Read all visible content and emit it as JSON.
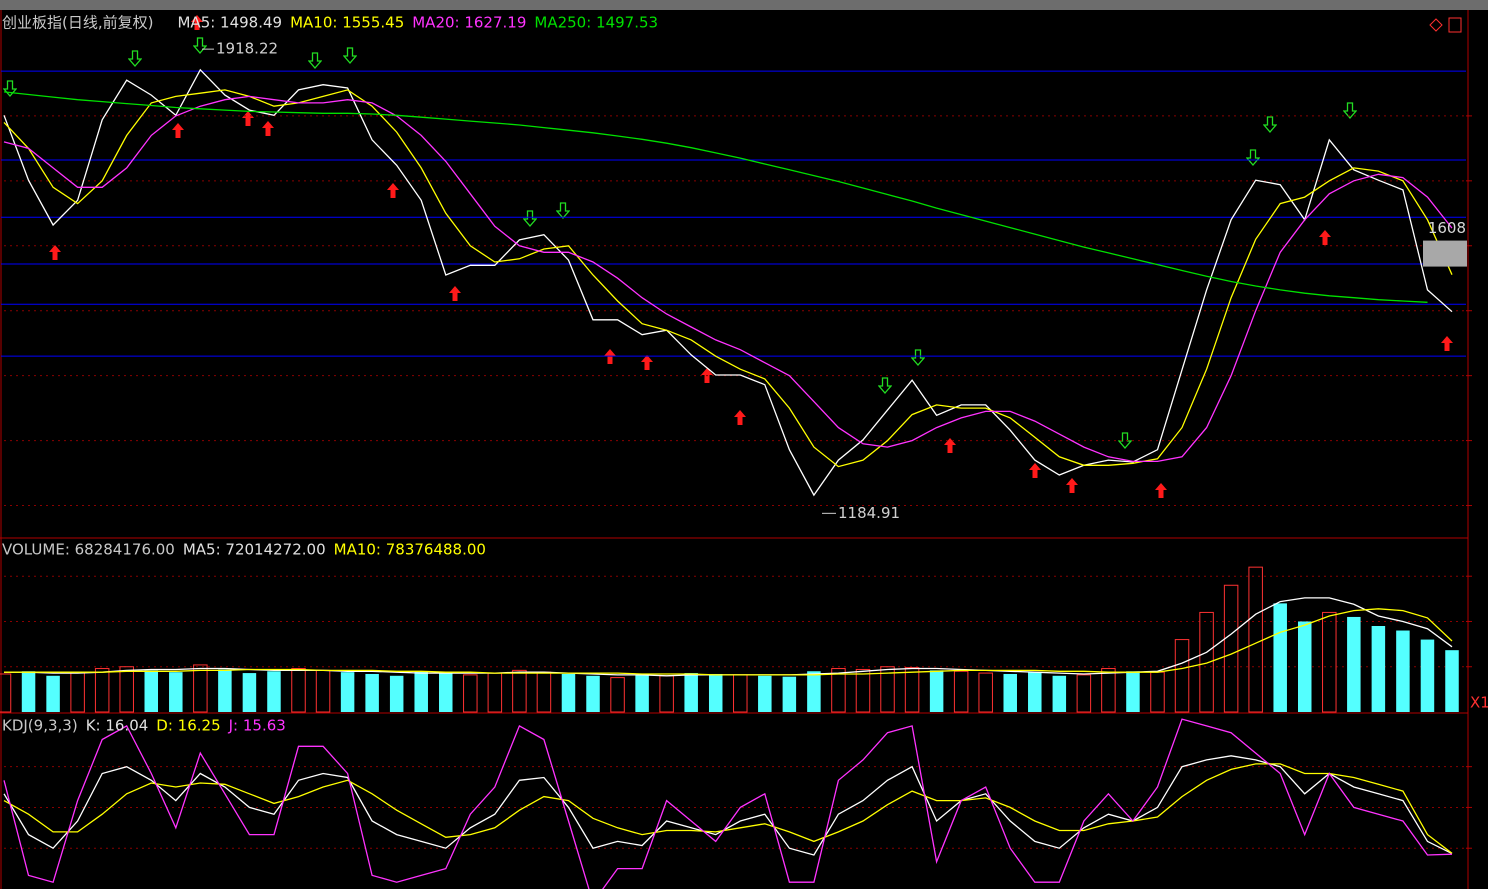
{
  "chart_data": [
    {
      "type": "line",
      "title": "创业板指(日线,前复权)",
      "series": [
        {
          "name": "MA5: 1498.49",
          "color": "#ffffff",
          "values": [
            1801,
            1701,
            1632,
            1670,
            1794,
            1855,
            1832,
            1801,
            1871,
            1832,
            1809,
            1801,
            1840,
            1848,
            1843,
            1763,
            1724,
            1670,
            1555,
            1570,
            1570,
            1609,
            1617,
            1578,
            1486,
            1486,
            1463,
            1470,
            1432,
            1401,
            1401,
            1386,
            1286,
            1216,
            1270,
            1301,
            1347,
            1393,
            1339,
            1355,
            1355,
            1316,
            1270,
            1247,
            1262,
            1270,
            1267,
            1286,
            1409,
            1532,
            1640,
            1701,
            1694,
            1640,
            1763,
            1717,
            1701,
            1686,
            1532,
            1498.49
          ]
        },
        {
          "name": "MA10: 1555.45",
          "color": "#ffff00",
          "values": [
            1790,
            1750,
            1690,
            1665,
            1700,
            1770,
            1820,
            1830,
            1835,
            1840,
            1830,
            1815,
            1820,
            1830,
            1840,
            1815,
            1775,
            1720,
            1650,
            1600,
            1575,
            1580,
            1595,
            1600,
            1555,
            1515,
            1480,
            1470,
            1455,
            1430,
            1410,
            1395,
            1350,
            1290,
            1260,
            1270,
            1300,
            1340,
            1355,
            1350,
            1350,
            1335,
            1305,
            1275,
            1262,
            1262,
            1265,
            1272,
            1320,
            1410,
            1520,
            1610,
            1665,
            1675,
            1700,
            1720,
            1715,
            1700,
            1640,
            1555.45
          ]
        },
        {
          "name": "MA20: 1627.19",
          "color": "#ff33ff",
          "values": [
            1760,
            1750,
            1720,
            1690,
            1690,
            1720,
            1770,
            1800,
            1815,
            1825,
            1830,
            1825,
            1820,
            1820,
            1825,
            1820,
            1800,
            1770,
            1730,
            1680,
            1630,
            1600,
            1590,
            1590,
            1575,
            1550,
            1520,
            1495,
            1475,
            1455,
            1440,
            1420,
            1400,
            1360,
            1320,
            1295,
            1290,
            1300,
            1320,
            1335,
            1345,
            1345,
            1330,
            1310,
            1290,
            1275,
            1268,
            1268,
            1275,
            1320,
            1400,
            1500,
            1590,
            1640,
            1680,
            1700,
            1710,
            1705,
            1675,
            1627.19
          ]
        },
        {
          "name": "MA250: 1497.53",
          "color": "#00e000",
          "values": [
            1837,
            1833,
            1829,
            1825,
            1822,
            1819,
            1816,
            1813,
            1811,
            1809,
            1807,
            1806,
            1805,
            1804,
            1804,
            1803,
            1801,
            1798,
            1795,
            1792,
            1789,
            1786,
            1782,
            1778,
            1774,
            1769,
            1764,
            1758,
            1751,
            1743,
            1735,
            1726,
            1717,
            1708,
            1699,
            1689,
            1679,
            1669,
            1658,
            1648,
            1638,
            1628,
            1618,
            1608,
            1598,
            1589,
            1580,
            1571,
            1562,
            1553,
            1545,
            1538,
            1532,
            1527,
            1523,
            1520,
            1517,
            1515,
            1513,
            null
          ]
        }
      ],
      "ylim": [
        1150,
        1960
      ],
      "yticks": [
        1200,
        1300,
        1400,
        1500,
        1600,
        1700,
        1800
      ],
      "grid": true,
      "hlines": [
        1869,
        1732,
        1644,
        1572,
        1510,
        1430
      ],
      "hline_color": "#0000ff",
      "high": 1918.22,
      "low": 1184.91,
      "cursor_price": 1608
    },
    {
      "type": "bar",
      "title": "VOLUME: 68284176.00",
      "values": [
        42000000,
        45000000,
        40000000,
        44000000,
        48000000,
        50000000,
        46000000,
        44000000,
        52000000,
        47000000,
        43000000,
        45000000,
        48000000,
        46000000,
        44000000,
        42000000,
        40000000,
        45000000,
        44000000,
        41000000,
        43000000,
        46000000,
        44000000,
        42000000,
        40000000,
        38000000,
        41000000,
        40000000,
        43000000,
        42000000,
        41000000,
        40000000,
        39000000,
        45000000,
        48000000,
        47000000,
        50000000,
        49000000,
        46000000,
        45000000,
        43000000,
        42000000,
        44000000,
        40000000,
        41000000,
        48000000,
        45000000,
        44000000,
        80000000,
        110000000,
        140000000,
        160000000,
        120000000,
        100000000,
        110000000,
        105000000,
        95000000,
        90000000,
        80000000,
        68284176
      ],
      "up_color": "#ff3232",
      "down_color": "#54ffff",
      "series": [
        {
          "name": "MA5: 72014272.00",
          "color": "#ffffff",
          "values": [
            44000000,
            44000000,
            43000000,
            43000000,
            44000000,
            46000000,
            47000000,
            47000000,
            48000000,
            48000000,
            47000000,
            46000000,
            46000000,
            46000000,
            45000000,
            45000000,
            44000000,
            43000000,
            43000000,
            43000000,
            43000000,
            44000000,
            44000000,
            43000000,
            42000000,
            41000000,
            41000000,
            40000000,
            41000000,
            41000000,
            41000000,
            41000000,
            41000000,
            42000000,
            43000000,
            45000000,
            47000000,
            48000000,
            48000000,
            47000000,
            46000000,
            45000000,
            44000000,
            43000000,
            42000000,
            43000000,
            44000000,
            45000000,
            54000000,
            66000000,
            86000000,
            108000000,
            122000000,
            126000000,
            126000000,
            119000000,
            106000000,
            100000000,
            92000000,
            72014272
          ]
        },
        {
          "name": "MA10: 78376488.00",
          "color": "#ffff00",
          "values": [
            44000000,
            44000000,
            44000000,
            44000000,
            44000000,
            45000000,
            45000000,
            45000000,
            46000000,
            46000000,
            47000000,
            47000000,
            47000000,
            46000000,
            46000000,
            46000000,
            45000000,
            45000000,
            44000000,
            44000000,
            43000000,
            43000000,
            43000000,
            43000000,
            43000000,
            43000000,
            42000000,
            42000000,
            42000000,
            41000000,
            41000000,
            41000000,
            41000000,
            41000000,
            42000000,
            42000000,
            43000000,
            44000000,
            45000000,
            46000000,
            46000000,
            46000000,
            46000000,
            45000000,
            45000000,
            44000000,
            44000000,
            44000000,
            48000000,
            54000000,
            64000000,
            76000000,
            88000000,
            96000000,
            106000000,
            112000000,
            114000000,
            112000000,
            104000000,
            78376488
          ]
        }
      ],
      "ylim": [
        0,
        190000000
      ],
      "yticks": [
        50000000,
        100000000,
        150000000
      ],
      "grid": true,
      "unit_label": "X1"
    },
    {
      "type": "line",
      "title": "KDJ(9,3,3)",
      "series": [
        {
          "name": "K: 16.04",
          "color": "#ffffff",
          "values": [
            60,
            30,
            20,
            40,
            75,
            80,
            70,
            55,
            75,
            65,
            50,
            45,
            70,
            75,
            72,
            40,
            30,
            25,
            20,
            35,
            45,
            70,
            72,
            50,
            20,
            25,
            22,
            40,
            35,
            30,
            40,
            45,
            20,
            15,
            45,
            55,
            70,
            80,
            40,
            55,
            60,
            40,
            25,
            20,
            35,
            45,
            40,
            50,
            80,
            85,
            88,
            85,
            80,
            60,
            75,
            65,
            60,
            55,
            25,
            16.04
          ]
        },
        {
          "name": "D: 16.25",
          "color": "#ffff00",
          "values": [
            55,
            45,
            32,
            32,
            45,
            60,
            68,
            65,
            68,
            67,
            60,
            53,
            58,
            65,
            70,
            60,
            48,
            38,
            28,
            30,
            35,
            48,
            58,
            55,
            42,
            35,
            30,
            33,
            33,
            32,
            35,
            38,
            32,
            25,
            32,
            40,
            52,
            62,
            55,
            55,
            57,
            50,
            40,
            33,
            33,
            38,
            40,
            43,
            58,
            70,
            78,
            82,
            82,
            75,
            75,
            72,
            67,
            62,
            30,
            16.25
          ]
        },
        {
          "name": "J: 15.63",
          "color": "#ff33ff",
          "values": [
            70,
            0,
            -5,
            55,
            100,
            110,
            75,
            35,
            90,
            60,
            30,
            30,
            95,
            95,
            75,
            0,
            -5,
            0,
            5,
            45,
            65,
            110,
            100,
            40,
            -20,
            5,
            5,
            55,
            40,
            25,
            50,
            60,
            -5,
            -5,
            70,
            85,
            105,
            110,
            10,
            55,
            65,
            20,
            -5,
            -5,
            40,
            60,
            40,
            65,
            115,
            110,
            105,
            90,
            75,
            30,
            75,
            50,
            45,
            40,
            15,
            15.63
          ]
        }
      ],
      "ylim": [
        -10,
        118
      ],
      "yticks": [
        20,
        50,
        80
      ],
      "grid": true
    }
  ]
}
